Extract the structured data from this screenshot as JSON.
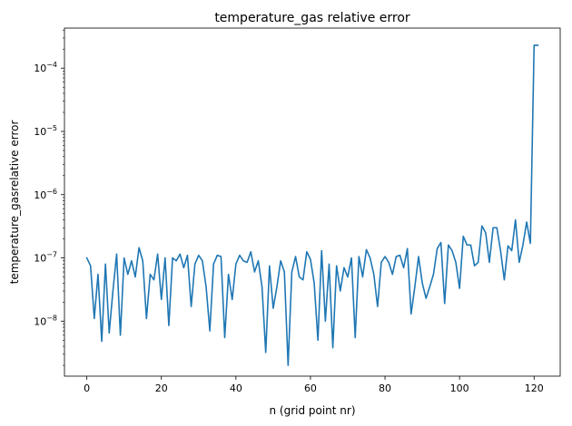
{
  "chart_data": {
    "type": "line",
    "title": "temperature_gas relative error",
    "xlabel": "n (grid point nr)",
    "ylabel": "temperature_gasrelative error",
    "yscale": "log",
    "xlim": [
      -6,
      127
    ],
    "ylim": [
      1.35e-09,
      0.00043
    ],
    "xticks": [
      0,
      20,
      40,
      60,
      80,
      100,
      120
    ],
    "xtick_labels": [
      "0",
      "20",
      "40",
      "60",
      "80",
      "100",
      "120"
    ],
    "yticks": [
      1e-08,
      1e-07,
      1e-06,
      1e-05,
      0.0001
    ],
    "ytick_labels": [
      {
        "base": "10",
        "exp": "−8"
      },
      {
        "base": "10",
        "exp": "−7"
      },
      {
        "base": "10",
        "exp": "−6"
      },
      {
        "base": "10",
        "exp": "−5"
      },
      {
        "base": "10",
        "exp": "−4"
      }
    ],
    "grid": false,
    "legend": false,
    "line_color": "#1f77b4",
    "series": [
      {
        "x": [
          0,
          1,
          2,
          3,
          4,
          5,
          6,
          7,
          8,
          9,
          10,
          11,
          12,
          13,
          14,
          15,
          16,
          17,
          18,
          19,
          20,
          21,
          22,
          23,
          24,
          25,
          26,
          27,
          28,
          29,
          30,
          31,
          32,
          33,
          34,
          35,
          36,
          37,
          38,
          39,
          40,
          41,
          42,
          43,
          44,
          45,
          46,
          47,
          48,
          49,
          50,
          51,
          52,
          53,
          54,
          55,
          56,
          57,
          58,
          59,
          60,
          61,
          62,
          63,
          64,
          65,
          66,
          67,
          68,
          69,
          70,
          71,
          72,
          73,
          74,
          75,
          76,
          77,
          78,
          79,
          80,
          81,
          82,
          83,
          84,
          85,
          86,
          87,
          88,
          89,
          90,
          91,
          92,
          93,
          94,
          95,
          96,
          97,
          98,
          99,
          100,
          101,
          102,
          103,
          104,
          105,
          106,
          107,
          108,
          109,
          110,
          111,
          112,
          113,
          114,
          115,
          116,
          117,
          118,
          119,
          120,
          121
        ],
        "values": [
          1e-07,
          7.5e-08,
          1.1e-08,
          5.5e-08,
          4.8e-09,
          8e-08,
          6.5e-09,
          3e-08,
          1.15e-07,
          6e-09,
          1e-07,
          5.5e-08,
          9e-08,
          5e-08,
          1.45e-07,
          9e-08,
          1.1e-08,
          5.5e-08,
          4.5e-08,
          1.15e-07,
          2.2e-08,
          1e-07,
          8.5e-09,
          1e-07,
          9e-08,
          1.15e-07,
          7e-08,
          1.1e-07,
          1.7e-08,
          8e-08,
          1.1e-07,
          9e-08,
          3.5e-08,
          7e-09,
          8e-08,
          1.1e-07,
          1.05e-07,
          5.5e-09,
          5.5e-08,
          2.2e-08,
          8e-08,
          1.1e-07,
          9e-08,
          8.5e-08,
          1.25e-07,
          6e-08,
          9e-08,
          3.5e-08,
          3.2e-09,
          7.5e-08,
          1.6e-08,
          3.5e-08,
          9e-08,
          6e-08,
          2e-09,
          6e-08,
          1.05e-07,
          5e-08,
          4.5e-08,
          1.25e-07,
          9.5e-08,
          4e-08,
          5e-09,
          1.3e-07,
          1e-08,
          8e-08,
          3.8e-09,
          7.5e-08,
          3e-08,
          7e-08,
          5e-08,
          1e-07,
          5.5e-09,
          1.05e-07,
          5e-08,
          1.35e-07,
          1e-07,
          5.5e-08,
          1.7e-08,
          8.5e-08,
          1.05e-07,
          8.5e-08,
          5.5e-08,
          1.05e-07,
          1.1e-07,
          7e-08,
          1.4e-07,
          1.3e-08,
          3.5e-08,
          1.05e-07,
          4e-08,
          2.3e-08,
          3.5e-08,
          5.5e-08,
          1.4e-07,
          1.75e-07,
          1.9e-08,
          1.6e-07,
          1.3e-07,
          8.5e-08,
          3.3e-08,
          2.2e-07,
          1.6e-07,
          1.6e-07,
          7.5e-08,
          8.5e-08,
          3.2e-07,
          2.5e-07,
          8.5e-08,
          3e-07,
          3e-07,
          1.3e-07,
          4.5e-08,
          1.55e-07,
          1.3e-07,
          4e-07,
          8.5e-08,
          1.6e-07,
          3.7e-07,
          1.7e-07,
          0.00023,
          0.00023
        ]
      }
    ]
  }
}
